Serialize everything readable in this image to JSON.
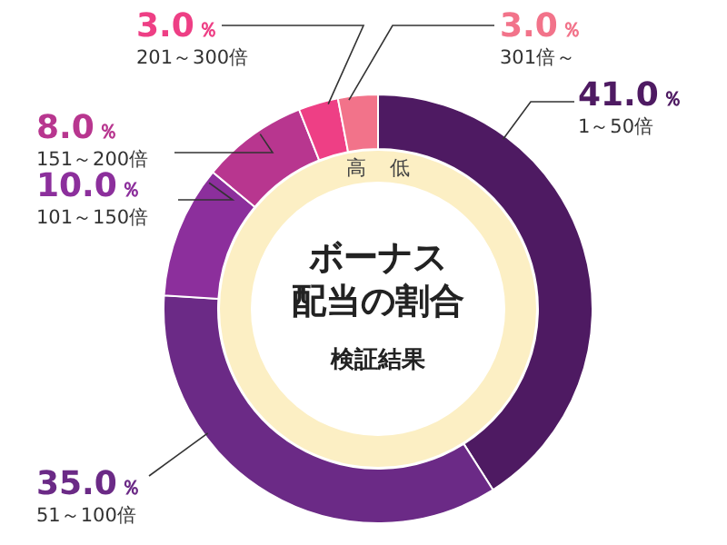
{
  "chart_data": {
    "type": "donut",
    "title": "ボーナス配当の割合",
    "subtitle": "検証結果",
    "categories": [
      "1～50倍",
      "51～100倍",
      "101～150倍",
      "151～200倍",
      "201～300倍",
      "301倍～"
    ],
    "values": [
      41,
      35,
      10,
      8,
      3,
      3
    ],
    "value_labels": [
      "41.0％",
      "35.0％",
      "10.0％",
      "8.0％",
      "3.0％",
      "3.0％"
    ],
    "colors": [
      "#4e1a62",
      "#6b2a86",
      "#8c2f9c",
      "#b8368f",
      "#ee3f85",
      "#f2738a"
    ],
    "annotations": [
      "高",
      "低"
    ]
  }
}
